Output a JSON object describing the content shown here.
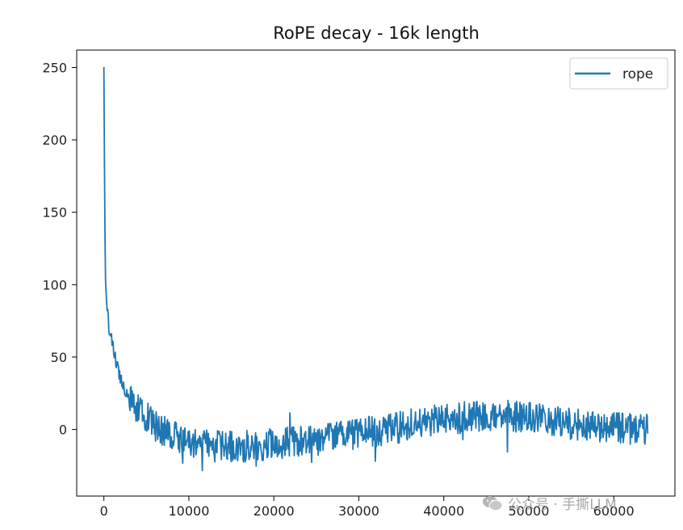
{
  "chart_data": {
    "type": "line",
    "title": "RoPE decay - 16k length",
    "xlabel": "",
    "ylabel": "",
    "xlim": [
      -3200,
      67200
    ],
    "ylim": [
      -46,
      262
    ],
    "x_ticks": [
      0,
      10000,
      20000,
      30000,
      40000,
      50000,
      60000
    ],
    "x_tick_labels": [
      "0",
      "10000",
      "20000",
      "30000",
      "40000",
      "50000",
      "60000"
    ],
    "y_ticks": [
      0,
      50,
      100,
      150,
      200,
      250
    ],
    "y_tick_labels": [
      "0",
      "50",
      "100",
      "150",
      "200",
      "250"
    ],
    "grid": false,
    "legend_position": "top-right",
    "series": [
      {
        "name": "rope",
        "color": "#1f77b4",
        "x": [
          0,
          100,
          200,
          400,
          700,
          1000,
          1500,
          2000,
          2500,
          3000,
          4000,
          5000,
          6000,
          7000,
          8000,
          9000,
          10000,
          12000,
          14000,
          16000,
          18000,
          20000,
          22000,
          24000,
          26000,
          28000,
          30000,
          32000,
          34000,
          36000,
          38000,
          40000,
          42000,
          44000,
          46000,
          48000,
          50000,
          52000,
          54000,
          56000,
          58000,
          60000,
          62000,
          64000
        ],
        "y": [
          250,
          150,
          100,
          80,
          68,
          58,
          45,
          35,
          28,
          22,
          14,
          8,
          3,
          -1,
          -4,
          -7,
          -9,
          -11,
          -12,
          -12,
          -11,
          -10,
          -9,
          -8,
          -6,
          -5,
          -3,
          -1,
          1,
          3,
          5,
          7,
          8,
          9,
          10,
          9,
          8,
          6,
          5,
          3,
          2,
          1,
          0,
          0
        ]
      }
    ]
  },
  "watermark": {
    "icon": "wechat-icon",
    "text": "公众号 · 手撕LLM"
  }
}
